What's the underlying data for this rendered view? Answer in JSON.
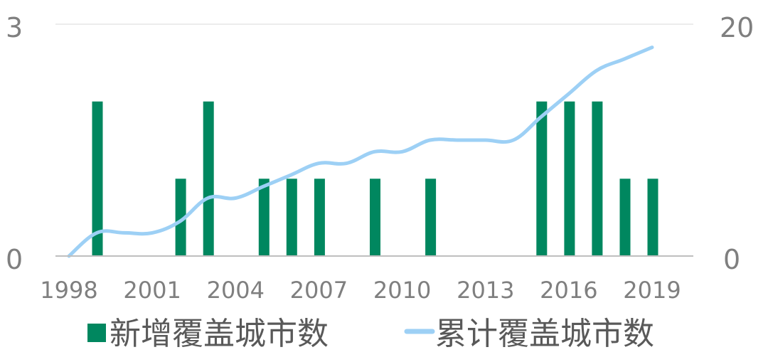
{
  "chart_data": {
    "type": "bar+line",
    "years": [
      1998,
      1999,
      2000,
      2001,
      2002,
      2003,
      2004,
      2005,
      2006,
      2007,
      2008,
      2009,
      2010,
      2011,
      2012,
      2013,
      2014,
      2015,
      2016,
      2017,
      2018,
      2019
    ],
    "x_tick_labels": [
      "1998",
      "2001",
      "2004",
      "2007",
      "2010",
      "2013",
      "2016",
      "2019"
    ],
    "series": [
      {
        "name": "新增覆盖城市数",
        "kind": "bar",
        "axis": "left",
        "color": "#00875f",
        "values": [
          0,
          2,
          0,
          0,
          1,
          2,
          0,
          1,
          1,
          1,
          0,
          1,
          0,
          1,
          0,
          0,
          0,
          2,
          2,
          2,
          1,
          1
        ]
      },
      {
        "name": "累计覆盖城市数",
        "kind": "line",
        "axis": "right",
        "color": "#9dd0f5",
        "values": [
          0,
          2,
          2,
          2,
          3,
          5,
          5,
          6,
          7,
          8,
          8,
          9,
          9,
          10,
          10,
          10,
          10,
          12,
          14,
          16,
          17,
          18
        ]
      }
    ],
    "left_axis": {
      "min": 0,
      "max": 3,
      "tick_labels": [
        "0",
        "3"
      ]
    },
    "right_axis": {
      "min": 0,
      "max": 20,
      "tick_labels": [
        "0",
        "20"
      ]
    },
    "grid": "top line only",
    "legend": "bottom"
  }
}
